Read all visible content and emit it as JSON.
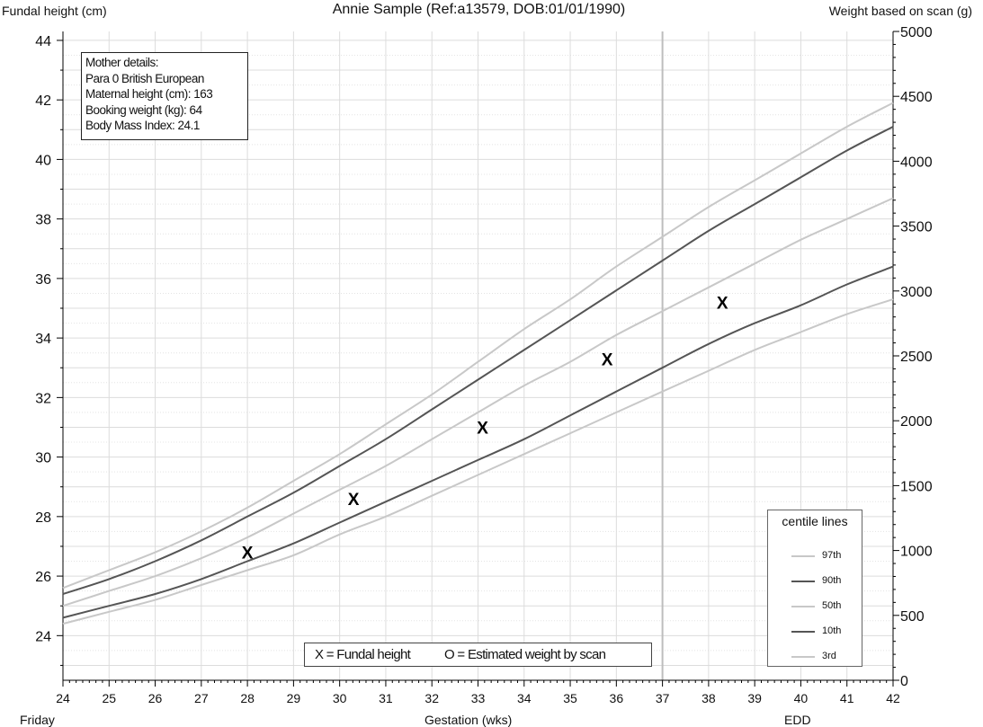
{
  "header": {
    "left_axis_label": "Fundal height (cm)",
    "title": "Annie Sample (Ref:a13579, DOB:01/01/1990)",
    "right_axis_label": "Weight based on scan (g)"
  },
  "mother_details": {
    "heading": "Mother details:",
    "para_line": "Para 0  British European",
    "height_line": "Maternal height (cm): 163",
    "weight_line": "Booking weight (kg): 64",
    "bmi_line": "Body Mass Index: 24.1"
  },
  "legend": {
    "title": "centile lines",
    "items": [
      {
        "label": "97th",
        "color": "#c8c8c8"
      },
      {
        "label": "90th",
        "color": "#555555"
      },
      {
        "label": "50th",
        "color": "#c8c8c8"
      },
      {
        "label": "10th",
        "color": "#555555"
      },
      {
        "label": "3rd",
        "color": "#c8c8c8"
      }
    ]
  },
  "key": {
    "fundal": "X = Fundal height",
    "scan": "O = Estimated weight by scan"
  },
  "bottom_text": {
    "left": "Friday",
    "center": "Gestation (wks)",
    "right": "EDD"
  },
  "chart_data": {
    "type": "line",
    "xlim": [
      24,
      42
    ],
    "x_ticks": [
      "24",
      "25",
      "26",
      "27",
      "28",
      "29",
      "30",
      "31",
      "32",
      "33",
      "34",
      "35",
      "36",
      "37",
      "38",
      "39",
      "40",
      "41",
      "42"
    ],
    "ylim_left": [
      22.5,
      44.3
    ],
    "y_ticks_left": [
      "24",
      "26",
      "28",
      "30",
      "32",
      "34",
      "36",
      "38",
      "40",
      "42",
      "44"
    ],
    "ylim_right": [
      0,
      5000
    ],
    "y_ticks_right": [
      "0",
      "500",
      "1000",
      "1500",
      "2000",
      "2500",
      "3000",
      "3500",
      "4000",
      "4500",
      "5000"
    ],
    "grid": true,
    "edd_week": 37,
    "series": [
      {
        "name": "97th",
        "color": "#c8c8c8",
        "x": [
          24,
          25,
          26,
          27,
          28,
          29,
          30,
          31,
          32,
          33,
          34,
          35,
          36,
          37,
          38,
          39,
          40,
          41,
          42
        ],
        "y": [
          25.6,
          26.2,
          26.8,
          27.5,
          28.3,
          29.2,
          30.1,
          31.1,
          32.1,
          33.2,
          34.3,
          35.3,
          36.4,
          37.4,
          38.4,
          39.3,
          40.2,
          41.1,
          41.9
        ]
      },
      {
        "name": "90th",
        "color": "#555555",
        "x": [
          24,
          25,
          26,
          27,
          28,
          29,
          30,
          31,
          32,
          33,
          34,
          35,
          36,
          37,
          38,
          39,
          40,
          41,
          42
        ],
        "y": [
          25.4,
          25.9,
          26.5,
          27.2,
          28.0,
          28.8,
          29.7,
          30.6,
          31.6,
          32.6,
          33.6,
          34.6,
          35.6,
          36.6,
          37.6,
          38.5,
          39.4,
          40.3,
          41.1
        ]
      },
      {
        "name": "50th",
        "color": "#c8c8c8",
        "x": [
          24,
          25,
          26,
          27,
          28,
          29,
          30,
          31,
          32,
          33,
          34,
          35,
          36,
          37,
          38,
          39,
          40,
          41,
          42
        ],
        "y": [
          25.0,
          25.5,
          26.0,
          26.6,
          27.3,
          28.1,
          28.9,
          29.7,
          30.6,
          31.5,
          32.4,
          33.2,
          34.1,
          34.9,
          35.7,
          36.5,
          37.3,
          38.0,
          38.7
        ]
      },
      {
        "name": "10th",
        "color": "#555555",
        "x": [
          24,
          25,
          26,
          27,
          28,
          29,
          30,
          31,
          32,
          33,
          34,
          35,
          36,
          37,
          38,
          39,
          40,
          41,
          42
        ],
        "y": [
          24.6,
          25.0,
          25.4,
          25.9,
          26.5,
          27.1,
          27.8,
          28.5,
          29.2,
          29.9,
          30.6,
          31.4,
          32.2,
          33.0,
          33.8,
          34.5,
          35.1,
          35.8,
          36.4
        ]
      },
      {
        "name": "3rd",
        "color": "#c8c8c8",
        "x": [
          24,
          25,
          26,
          27,
          28,
          29,
          30,
          31,
          32,
          33,
          34,
          35,
          36,
          37,
          38,
          39,
          40,
          41,
          42
        ],
        "y": [
          24.4,
          24.8,
          25.2,
          25.7,
          26.2,
          26.7,
          27.4,
          28.0,
          28.7,
          29.4,
          30.1,
          30.8,
          31.5,
          32.2,
          32.9,
          33.6,
          34.2,
          34.8,
          35.3
        ]
      }
    ],
    "fundal_height_points": {
      "marker": "X",
      "x": [
        28.0,
        30.3,
        33.1,
        35.8,
        38.3
      ],
      "y": [
        26.8,
        28.6,
        31.0,
        33.3,
        35.2
      ]
    }
  }
}
